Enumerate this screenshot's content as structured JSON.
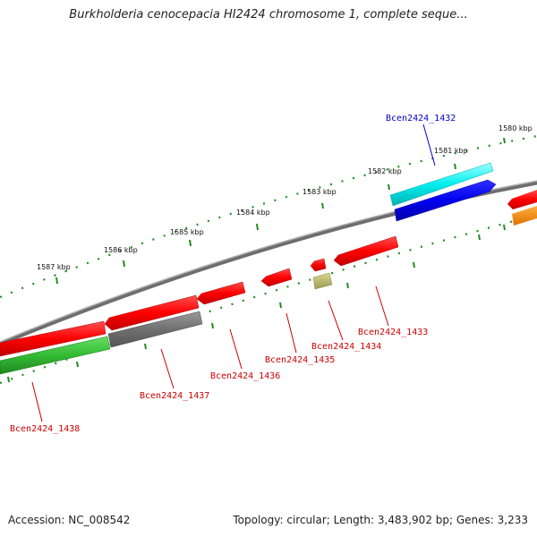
{
  "title": "Burkholderia cenocepacia HI2424 chromosome 1, complete seque...",
  "footer": {
    "accession": "Accession: NC_008542",
    "summary": "Topology: circular; Length: 3,483,902 bp; Genes: 3,233"
  },
  "scale_labels": [
    "1580 kbp",
    "1581 kbp",
    "1582 kbp",
    "1583 kbp",
    "1584 kbp",
    "1585 kbp",
    "1586 kbp",
    "1587 kbp"
  ],
  "genes": [
    {
      "id": "Bcen2424_1432",
      "color": "#0000cc",
      "strand": "+"
    },
    {
      "id": "Bcen2424_1433",
      "color": "#cc0000",
      "strand": "-"
    },
    {
      "id": "Bcen2424_1434",
      "color": "#cc0000",
      "strand": "-"
    },
    {
      "id": "Bcen2424_1435",
      "color": "#cc0000",
      "strand": "-"
    },
    {
      "id": "Bcen2424_1436",
      "color": "#cc0000",
      "strand": "-"
    },
    {
      "id": "Bcen2424_1437",
      "color": "#cc0000",
      "strand": "-"
    },
    {
      "id": "Bcen2424_1438",
      "color": "#cc0000",
      "strand": "-"
    }
  ],
  "colors": {
    "backbone": "#808080",
    "ticks": "#228b22",
    "forward_gene": "#0000ee",
    "forward_cds": "#00e5e5",
    "reverse_gene": "#ff0000",
    "reverse_cds_green": "#33bb33",
    "reverse_cds_gray": "#777777",
    "misc_olive": "#b8b870",
    "misc_orange": "#ff8c00"
  }
}
